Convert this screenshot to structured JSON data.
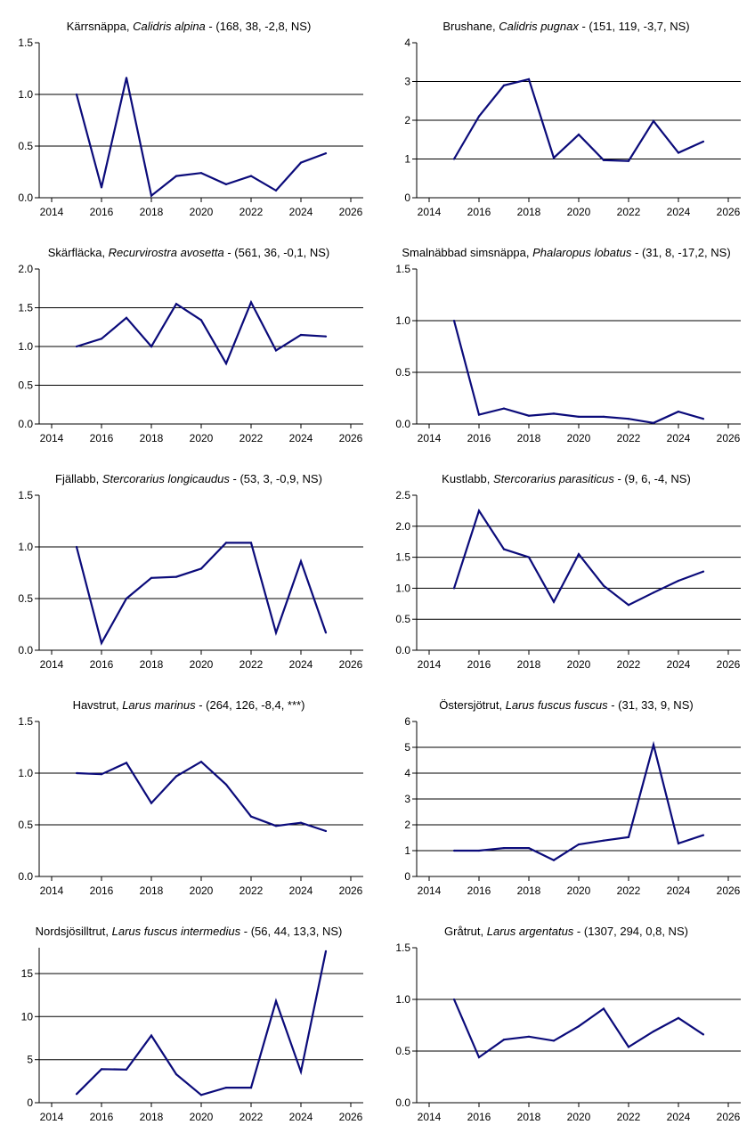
{
  "colors": {
    "line": "#0b0b7a",
    "axis": "#000000",
    "grid": "#000000"
  },
  "chart_data": [
    {
      "type": "line",
      "title": {
        "name": "Kärrsnäppa",
        "latin": "Calidris alpina",
        "stats": "(168, 38, -2,8, NS)"
      },
      "x": [
        2015,
        2016,
        2017,
        2018,
        2019,
        2020,
        2021,
        2022,
        2023,
        2024,
        2025
      ],
      "values": [
        1.0,
        0.1,
        1.16,
        0.02,
        0.21,
        0.24,
        0.13,
        0.21,
        0.07,
        0.34,
        0.43
      ],
      "xlim": [
        2013.5,
        2026.5
      ],
      "xticks": [
        2014,
        2016,
        2018,
        2020,
        2022,
        2024,
        2026
      ],
      "ylim": [
        0,
        1.5
      ],
      "yticks": [
        0,
        0.5,
        1.0,
        1.5
      ],
      "ytick_labels": [
        "0.0",
        "0.5",
        "1.0",
        "1.5"
      ],
      "gridlines": [
        0.5,
        1.0
      ]
    },
    {
      "type": "line",
      "title": {
        "name": "Brushane",
        "latin": "Calidris pugnax",
        "stats": "(151, 119, -3,7, NS)"
      },
      "x": [
        2015,
        2016,
        2017,
        2018,
        2019,
        2020,
        2021,
        2022,
        2023,
        2024,
        2025
      ],
      "values": [
        1.0,
        2.1,
        2.9,
        3.06,
        1.03,
        1.63,
        0.97,
        0.95,
        1.98,
        1.16,
        1.45
      ],
      "xlim": [
        2013.5,
        2026.5
      ],
      "xticks": [
        2014,
        2016,
        2018,
        2020,
        2022,
        2024,
        2026
      ],
      "ylim": [
        0,
        4
      ],
      "yticks": [
        0,
        1,
        2,
        3,
        4
      ],
      "ytick_labels": [
        "0",
        "1",
        "2",
        "3",
        "4"
      ],
      "gridlines": [
        1,
        2,
        3
      ]
    },
    {
      "type": "line",
      "title": {
        "name": "Skärfläcka",
        "latin": "Recurvirostra avosetta",
        "stats": "(561, 36, -0,1, NS)"
      },
      "x": [
        2015,
        2016,
        2017,
        2018,
        2019,
        2020,
        2021,
        2022,
        2023,
        2024,
        2025
      ],
      "values": [
        1.0,
        1.1,
        1.37,
        1.0,
        1.55,
        1.34,
        0.78,
        1.57,
        0.95,
        1.15,
        1.13
      ],
      "xlim": [
        2013.5,
        2026.5
      ],
      "xticks": [
        2014,
        2016,
        2018,
        2020,
        2022,
        2024,
        2026
      ],
      "ylim": [
        0,
        2.0
      ],
      "yticks": [
        0,
        0.5,
        1.0,
        1.5,
        2.0
      ],
      "ytick_labels": [
        "0.0",
        "0.5",
        "1.0",
        "1.5",
        "2.0"
      ],
      "gridlines": [
        0.5,
        1.0,
        1.5
      ]
    },
    {
      "type": "line",
      "title": {
        "name": "Smalnäbbad simsnäppa",
        "latin": "Phalaropus lobatus",
        "stats": "(31, 8, -17,2, NS)"
      },
      "x": [
        2015,
        2016,
        2017,
        2018,
        2019,
        2020,
        2021,
        2022,
        2023,
        2024,
        2025
      ],
      "values": [
        1.0,
        0.09,
        0.15,
        0.08,
        0.1,
        0.07,
        0.07,
        0.05,
        0.01,
        0.12,
        0.05
      ],
      "xlim": [
        2013.5,
        2026.5
      ],
      "xticks": [
        2014,
        2016,
        2018,
        2020,
        2022,
        2024,
        2026
      ],
      "ylim": [
        0,
        1.5
      ],
      "yticks": [
        0,
        0.5,
        1.0,
        1.5
      ],
      "ytick_labels": [
        "0.0",
        "0.5",
        "1.0",
        "1.5"
      ],
      "gridlines": [
        0.5,
        1.0
      ]
    },
    {
      "type": "line",
      "title": {
        "name": "Fjällabb",
        "latin": "Stercorarius longicaudus",
        "stats": "(53, 3, -0,9, NS)"
      },
      "x": [
        2015,
        2016,
        2017,
        2018,
        2019,
        2020,
        2021,
        2022,
        2023,
        2024,
        2025
      ],
      "values": [
        1.0,
        0.07,
        0.5,
        0.7,
        0.71,
        0.79,
        1.04,
        1.04,
        0.17,
        0.86,
        0.17
      ],
      "xlim": [
        2013.5,
        2026.5
      ],
      "xticks": [
        2014,
        2016,
        2018,
        2020,
        2022,
        2024,
        2026
      ],
      "ylim": [
        0,
        1.5
      ],
      "yticks": [
        0,
        0.5,
        1.0,
        1.5
      ],
      "ytick_labels": [
        "0.0",
        "0.5",
        "1.0",
        "1.5"
      ],
      "gridlines": [
        0.5,
        1.0
      ]
    },
    {
      "type": "line",
      "title": {
        "name": "Kustlabb",
        "latin": "Stercorarius parasiticus",
        "stats": "(9, 6, -4, NS)"
      },
      "x": [
        2015,
        2016,
        2017,
        2018,
        2019,
        2020,
        2021,
        2022,
        2023,
        2024,
        2025
      ],
      "values": [
        1.0,
        2.25,
        1.63,
        1.5,
        0.78,
        1.55,
        1.04,
        0.73,
        0.93,
        1.12,
        1.27
      ],
      "xlim": [
        2013.5,
        2026.5
      ],
      "xticks": [
        2014,
        2016,
        2018,
        2020,
        2022,
        2024,
        2026
      ],
      "ylim": [
        0,
        2.5
      ],
      "yticks": [
        0,
        0.5,
        1.0,
        1.5,
        2.0,
        2.5
      ],
      "ytick_labels": [
        "0.0",
        "0.5",
        "1.0",
        "1.5",
        "2.0",
        "2.5"
      ],
      "gridlines": [
        0.5,
        1.0,
        1.5,
        2.0
      ]
    },
    {
      "type": "line",
      "title": {
        "name": "Havstrut",
        "latin": "Larus marinus",
        "stats": "(264, 126, -8,4, ***)"
      },
      "x": [
        2015,
        2016,
        2017,
        2018,
        2019,
        2020,
        2021,
        2022,
        2023,
        2024,
        2025
      ],
      "values": [
        1.0,
        0.99,
        1.1,
        0.71,
        0.97,
        1.11,
        0.89,
        0.58,
        0.49,
        0.52,
        0.44
      ],
      "xlim": [
        2013.5,
        2026.5
      ],
      "xticks": [
        2014,
        2016,
        2018,
        2020,
        2022,
        2024,
        2026
      ],
      "ylim": [
        0,
        1.5
      ],
      "yticks": [
        0,
        0.5,
        1.0,
        1.5
      ],
      "ytick_labels": [
        "0.0",
        "0.5",
        "1.0",
        "1.5"
      ],
      "gridlines": [
        0.5,
        1.0
      ]
    },
    {
      "type": "line",
      "title": {
        "name": "Östersjötrut",
        "latin": "Larus fuscus fuscus",
        "stats": "(31, 33, 9, NS)"
      },
      "x": [
        2015,
        2016,
        2017,
        2018,
        2019,
        2020,
        2021,
        2022,
        2023,
        2024,
        2025
      ],
      "values": [
        1.0,
        1.0,
        1.1,
        1.1,
        0.63,
        1.24,
        1.39,
        1.52,
        5.1,
        1.28,
        1.6
      ],
      "xlim": [
        2013.5,
        2026.5
      ],
      "xticks": [
        2014,
        2016,
        2018,
        2020,
        2022,
        2024,
        2026
      ],
      "ylim": [
        0,
        6
      ],
      "yticks": [
        0,
        1,
        2,
        3,
        4,
        5,
        6
      ],
      "ytick_labels": [
        "0",
        "1",
        "2",
        "3",
        "4",
        "5",
        "6"
      ],
      "gridlines": [
        1,
        2,
        3,
        4,
        5
      ]
    },
    {
      "type": "line",
      "title": {
        "name": "Nordsjösilltrut",
        "latin": "Larus fuscus intermedius",
        "stats": "(56, 44, 13,3, NS)"
      },
      "x": [
        2015,
        2016,
        2017,
        2018,
        2019,
        2020,
        2021,
        2022,
        2023,
        2024,
        2025
      ],
      "values": [
        1.0,
        3.9,
        3.85,
        7.8,
        3.3,
        0.9,
        1.75,
        1.75,
        11.8,
        3.6,
        17.6
      ],
      "xlim": [
        2013.5,
        2026.5
      ],
      "xticks": [
        2014,
        2016,
        2018,
        2020,
        2022,
        2024,
        2026
      ],
      "ylim": [
        0,
        18
      ],
      "yticks": [
        0,
        5,
        10,
        15
      ],
      "ytick_labels": [
        "0",
        "5",
        "10",
        "15"
      ],
      "gridlines": [
        5,
        10,
        15
      ]
    },
    {
      "type": "line",
      "title": {
        "name": "Gråtrut",
        "latin": "Larus argentatus",
        "stats": "(1307, 294, 0,8, NS)"
      },
      "x": [
        2015,
        2016,
        2017,
        2018,
        2019,
        2020,
        2021,
        2022,
        2023,
        2024,
        2025
      ],
      "values": [
        1.0,
        0.44,
        0.61,
        0.64,
        0.6,
        0.74,
        0.91,
        0.54,
        0.69,
        0.82,
        0.66
      ],
      "xlim": [
        2013.5,
        2026.5
      ],
      "xticks": [
        2014,
        2016,
        2018,
        2020,
        2022,
        2024,
        2026
      ],
      "ylim": [
        0,
        1.5
      ],
      "yticks": [
        0,
        0.5,
        1.0,
        1.5
      ],
      "ytick_labels": [
        "0.0",
        "0.5",
        "1.0",
        "1.5"
      ],
      "gridlines": [
        0.5,
        1.0
      ]
    }
  ]
}
